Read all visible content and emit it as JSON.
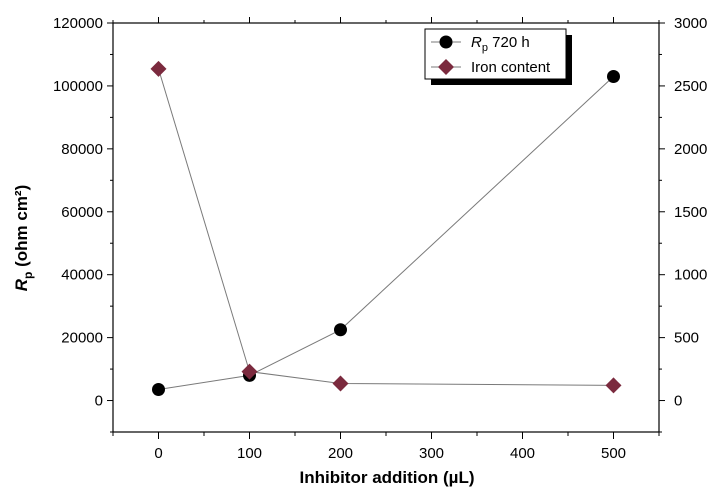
{
  "chart_data": {
    "type": "scatter",
    "x_axis": {
      "label": "Inhibitor addition  (µL)",
      "range": [
        -50,
        550
      ],
      "ticks": [
        0,
        100,
        200,
        300,
        400,
        500
      ]
    },
    "y_axis_left": {
      "label_main": "R",
      "label_sub": "p",
      "label_rest": " (ohm cm²)",
      "range": [
        -10000,
        120000
      ],
      "ticks": [
        0,
        20000,
        40000,
        60000,
        80000,
        100000,
        120000
      ]
    },
    "y_axis_right": {
      "range": [
        -250,
        3000
      ],
      "ticks": [
        0,
        500,
        1000,
        1500,
        2000,
        2500,
        3000
      ]
    },
    "series": [
      {
        "name_main": "R",
        "name_sub": "p",
        "name_rest": " 720 h",
        "axis": "left",
        "marker": "circle",
        "color": "#000000",
        "line_color": "#7a7a7a",
        "x": [
          0,
          100,
          200,
          500
        ],
        "y": [
          3500,
          8000,
          22500,
          103000
        ]
      },
      {
        "name": "Iron content",
        "axis": "right",
        "marker": "diamond",
        "color": "#7b2a3e",
        "line_color": "#7a7a7a",
        "x": [
          0,
          100,
          200,
          500
        ],
        "y": [
          2635,
          230,
          135,
          120
        ]
      }
    ],
    "legend": {
      "position": "top-right"
    }
  }
}
